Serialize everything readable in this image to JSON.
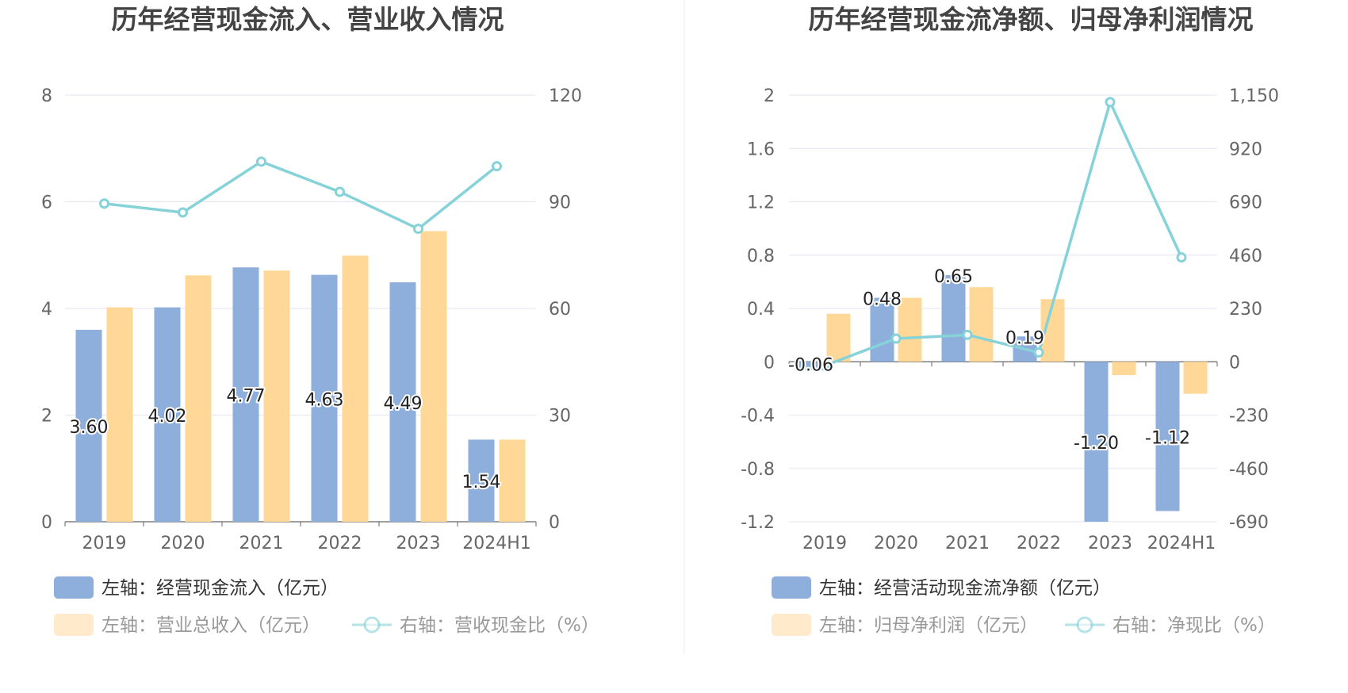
{
  "colors": {
    "bar_blue": "#8eaedc",
    "bar_orange": "#ffd897",
    "line": "#86d2d9",
    "grid": "#e3e6f0",
    "divider": "#eeeeee"
  },
  "chart_data": [
    {
      "type": "bar",
      "title": "历年经营现金流入、营业收入情况",
      "categories": [
        "2019",
        "2020",
        "2021",
        "2022",
        "2023",
        "2024H1"
      ],
      "y_left": {
        "ticks": [
          "0",
          "2",
          "4",
          "6",
          "8"
        ],
        "ylim": [
          0,
          8
        ]
      },
      "y_right": {
        "ticks": [
          "0",
          "30",
          "60",
          "90",
          "120"
        ],
        "ylim": [
          0,
          120
        ]
      },
      "series": [
        {
          "name": "左轴：经营现金流入（亿元）",
          "axis": "left",
          "kind": "bar",
          "values": [
            3.6,
            4.02,
            4.77,
            4.63,
            4.49,
            1.54
          ],
          "labels": [
            "3.60",
            "4.02",
            "4.77",
            "4.63",
            "4.49",
            "1.54"
          ]
        },
        {
          "name": "左轴：营业总收入（亿元）",
          "axis": "left",
          "kind": "bar",
          "values": [
            4.02,
            4.62,
            4.71,
            4.99,
            5.45,
            1.54
          ]
        },
        {
          "name": "右轴：营收现金比（%）",
          "axis": "right",
          "kind": "line",
          "values": [
            89.5,
            87.0,
            101.3,
            92.8,
            82.4,
            100.0
          ]
        }
      ],
      "grid": true,
      "legend": "bottom"
    },
    {
      "type": "bar",
      "title": "历年经营现金流净额、归母净利润情况",
      "categories": [
        "2019",
        "2020",
        "2021",
        "2022",
        "2023",
        "2024H1"
      ],
      "y_left": {
        "ticks": [
          "-1.2",
          "-0.8",
          "-0.4",
          "0",
          "0.4",
          "0.8",
          "1.2",
          "1.6",
          "2"
        ],
        "ylim": [
          -1.2,
          2
        ]
      },
      "y_right": {
        "ticks": [
          "-690",
          "-460",
          "-230",
          "0",
          "230",
          "460",
          "690",
          "920",
          "1,150"
        ],
        "ylim": [
          -690,
          1150
        ]
      },
      "series": [
        {
          "name": "左轴：经营活动现金流净额（亿元）",
          "axis": "left",
          "kind": "bar",
          "values": [
            -0.06,
            0.48,
            0.65,
            0.19,
            -1.2,
            -1.12
          ],
          "labels": [
            "-0.06",
            "0.48",
            "0.65",
            "0.19",
            "-1.20",
            "-1.12"
          ]
        },
        {
          "name": "左轴：归母净利润（亿元）",
          "axis": "left",
          "kind": "bar",
          "values": [
            0.36,
            0.48,
            0.56,
            0.47,
            -0.1,
            -0.24
          ]
        },
        {
          "name": "右轴：净现比（%）",
          "axis": "right",
          "kind": "line",
          "values": [
            -17,
            100,
            116,
            40,
            1120,
            450
          ]
        }
      ],
      "grid": true,
      "legend": "bottom"
    }
  ]
}
